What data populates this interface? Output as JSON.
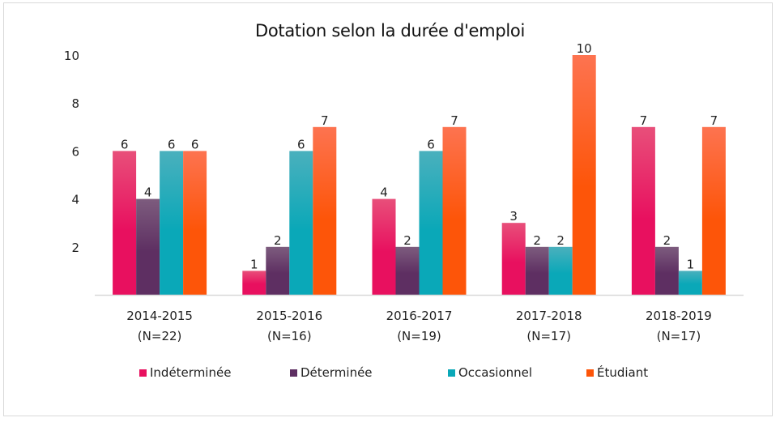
{
  "chart_data": {
    "type": "bar",
    "title": "Dotation selon la durée d'emploi",
    "xlabel": "",
    "ylabel": "",
    "ylim": [
      0,
      10
    ],
    "yticks": [
      2,
      4,
      6,
      8,
      10
    ],
    "grid": false,
    "legend_position": "bottom",
    "categories": [
      [
        "2014-2015",
        "(N=22)"
      ],
      [
        "2015-2016",
        "(N=16)"
      ],
      [
        "2016-2017",
        "(N=19)"
      ],
      [
        "2017-2018",
        "(N=17)"
      ],
      [
        "2018-2019",
        "(N=17)"
      ]
    ],
    "series": [
      {
        "name": "Indéterminée",
        "color": "#e8105f",
        "color_top": "#e84f7a",
        "values": [
          6,
          1,
          4,
          3,
          7
        ]
      },
      {
        "name": "Déterminée",
        "color": "#5e2f62",
        "color_top": "#7d5c7e",
        "values": [
          4,
          2,
          2,
          2,
          2
        ]
      },
      {
        "name": "Occasionnel",
        "color": "#0aa8b8",
        "color_top": "#4ab0bd",
        "values": [
          6,
          6,
          6,
          2,
          1
        ]
      },
      {
        "name": "Étudiant",
        "color": "#fd5509",
        "color_top": "#fd7350",
        "values": [
          6,
          7,
          7,
          10,
          7
        ]
      }
    ],
    "data_labels": true
  }
}
